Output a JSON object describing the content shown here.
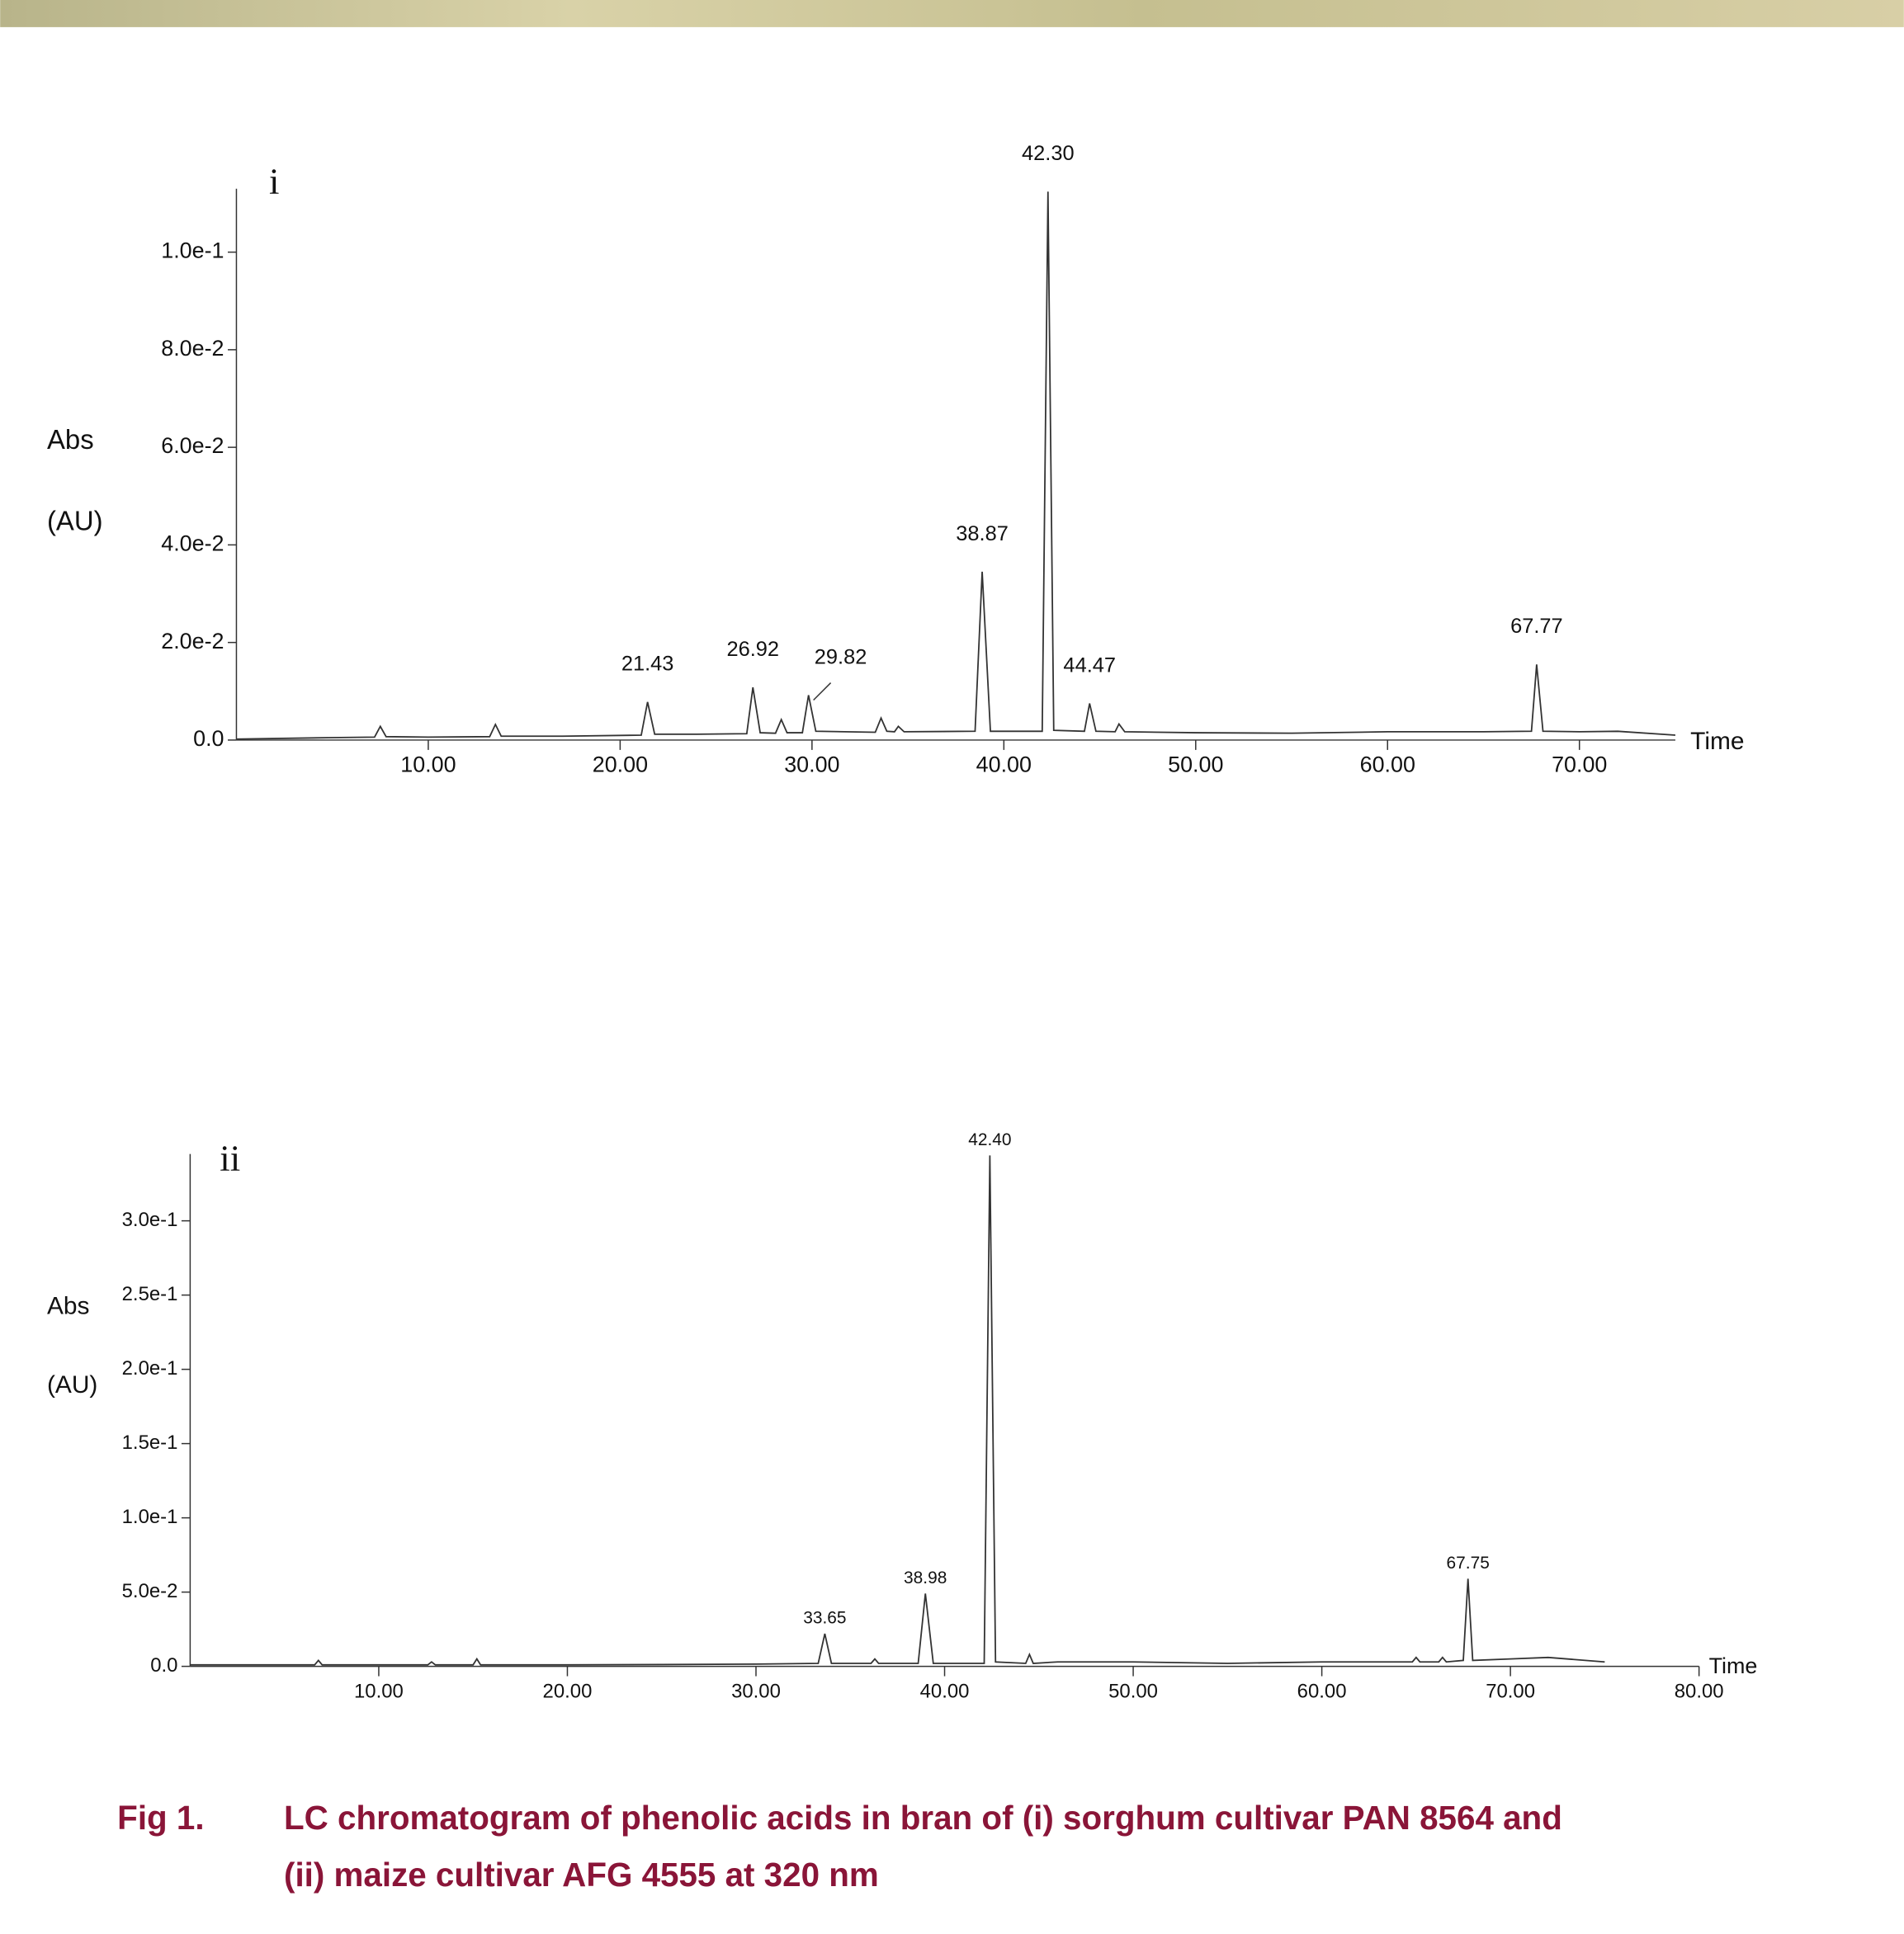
{
  "chart_data": [
    {
      "type": "line",
      "panel_label": "i",
      "ylabel": [
        "Abs",
        "(AU)"
      ],
      "xlabel": "Time",
      "color": "#333333",
      "xlim": [
        0,
        75
      ],
      "ylim": [
        0,
        0.113
      ],
      "xticks": [
        {
          "value": 10,
          "label": "10.00"
        },
        {
          "value": 20,
          "label": "20.00"
        },
        {
          "value": 30,
          "label": "30.00"
        },
        {
          "value": 40,
          "label": "40.00"
        },
        {
          "value": 50,
          "label": "50.00"
        },
        {
          "value": 60,
          "label": "60.00"
        },
        {
          "value": 70,
          "label": "70.00"
        }
      ],
      "yticks": [
        {
          "value": 0,
          "label": "0.0"
        },
        {
          "value": 0.02,
          "label": "2.0e-2"
        },
        {
          "value": 0.04,
          "label": "4.0e-2"
        },
        {
          "value": 0.06,
          "label": "6.0e-2"
        },
        {
          "value": 0.08,
          "label": "8.0e-2"
        },
        {
          "value": 0.1,
          "label": "1.0e-1"
        }
      ],
      "x": [
        0,
        5,
        7.2,
        7.5,
        7.8,
        10,
        13.2,
        13.5,
        13.8,
        17,
        21.1,
        21.43,
        21.8,
        24,
        26.6,
        26.92,
        27.3,
        28.1,
        28.4,
        28.7,
        29.5,
        29.82,
        30.2,
        33.3,
        33.6,
        33.9,
        34.3,
        34.5,
        34.8,
        38.5,
        38.87,
        39.3,
        42.0,
        42.3,
        42.6,
        44.2,
        44.47,
        44.8,
        45.8,
        46.0,
        46.3,
        50,
        55,
        60,
        65,
        67.5,
        67.77,
        68.1,
        70,
        72,
        75
      ],
      "values": [
        0.0002,
        0.0005,
        0.0006,
        0.0028,
        0.0007,
        0.0006,
        0.0007,
        0.0032,
        0.0008,
        0.0008,
        0.001,
        0.0078,
        0.0012,
        0.0012,
        0.0013,
        0.0108,
        0.0015,
        0.0014,
        0.0042,
        0.0015,
        0.0015,
        0.0092,
        0.0018,
        0.0016,
        0.0045,
        0.0018,
        0.0017,
        0.0028,
        0.0017,
        0.0018,
        0.0345,
        0.0018,
        0.0018,
        0.1124,
        0.002,
        0.0018,
        0.0075,
        0.0018,
        0.0017,
        0.0033,
        0.0017,
        0.0015,
        0.0014,
        0.0017,
        0.0017,
        0.0018,
        0.0155,
        0.0018,
        0.0017,
        0.0018,
        0.001
      ],
      "peak_labels": [
        {
          "value": 21.43,
          "label": "21.43"
        },
        {
          "value": 26.92,
          "label": "26.92"
        },
        {
          "value": 29.82,
          "label": "29.82"
        },
        {
          "value": 38.87,
          "label": "38.87"
        },
        {
          "value": 42.3,
          "label": "42.30"
        },
        {
          "value": 44.47,
          "label": "44.47"
        },
        {
          "value": 67.77,
          "label": "67.77"
        }
      ]
    },
    {
      "type": "line",
      "panel_label": "ii",
      "ylabel": [
        "Abs",
        "(AU)"
      ],
      "xlabel": "Time",
      "color": "#333333",
      "xlim": [
        0,
        80
      ],
      "ylim": [
        0,
        0.345
      ],
      "xticks": [
        {
          "value": 10,
          "label": "10.00"
        },
        {
          "value": 20,
          "label": "20.00"
        },
        {
          "value": 30,
          "label": "30.00"
        },
        {
          "value": 40,
          "label": "40.00"
        },
        {
          "value": 50,
          "label": "50.00"
        },
        {
          "value": 60,
          "label": "60.00"
        },
        {
          "value": 70,
          "label": "70.00"
        },
        {
          "value": 80,
          "label": "80.00"
        }
      ],
      "yticks": [
        {
          "value": 0,
          "label": "0.0"
        },
        {
          "value": 0.05,
          "label": "5.0e-2"
        },
        {
          "value": 0.1,
          "label": "1.0e-1"
        },
        {
          "value": 0.15,
          "label": "1.5e-1"
        },
        {
          "value": 0.2,
          "label": "2.0e-1"
        },
        {
          "value": 0.25,
          "label": "2.5e-1"
        },
        {
          "value": 0.3,
          "label": "3.0e-1"
        }
      ],
      "x": [
        0,
        5,
        6.6,
        6.8,
        7.0,
        12.6,
        12.8,
        13.0,
        15.0,
        15.2,
        15.4,
        20,
        25,
        30,
        33.3,
        33.65,
        34.0,
        36.1,
        36.3,
        36.5,
        38.6,
        38.98,
        39.4,
        42.1,
        42.4,
        42.7,
        44.3,
        44.5,
        44.7,
        46,
        50,
        55,
        60,
        64.8,
        65,
        65.2,
        66.2,
        66.4,
        66.6,
        67.5,
        67.75,
        68.0,
        70,
        72,
        75
      ],
      "values": [
        0.001,
        0.001,
        0.001,
        0.004,
        0.001,
        0.001,
        0.003,
        0.001,
        0.001,
        0.005,
        0.001,
        0.001,
        0.0012,
        0.0015,
        0.002,
        0.022,
        0.002,
        0.002,
        0.005,
        0.002,
        0.002,
        0.049,
        0.002,
        0.002,
        0.344,
        0.003,
        0.002,
        0.008,
        0.002,
        0.003,
        0.003,
        0.002,
        0.003,
        0.003,
        0.006,
        0.003,
        0.003,
        0.006,
        0.003,
        0.004,
        0.059,
        0.004,
        0.005,
        0.006,
        0.003
      ],
      "peak_labels": [
        {
          "value": 33.65,
          "label": "33.65"
        },
        {
          "value": 38.98,
          "label": "38.98"
        },
        {
          "value": 42.4,
          "label": "42.40"
        },
        {
          "value": 67.75,
          "label": "67.75"
        }
      ]
    }
  ],
  "caption": {
    "number": "Fig 1.",
    "lines": [
      "LC chromatogram of phenolic acids in bran of (i) sorghum cultivar PAN 8564 and",
      "(ii) maize cultivar AFG 4555 at 320 nm"
    ]
  }
}
